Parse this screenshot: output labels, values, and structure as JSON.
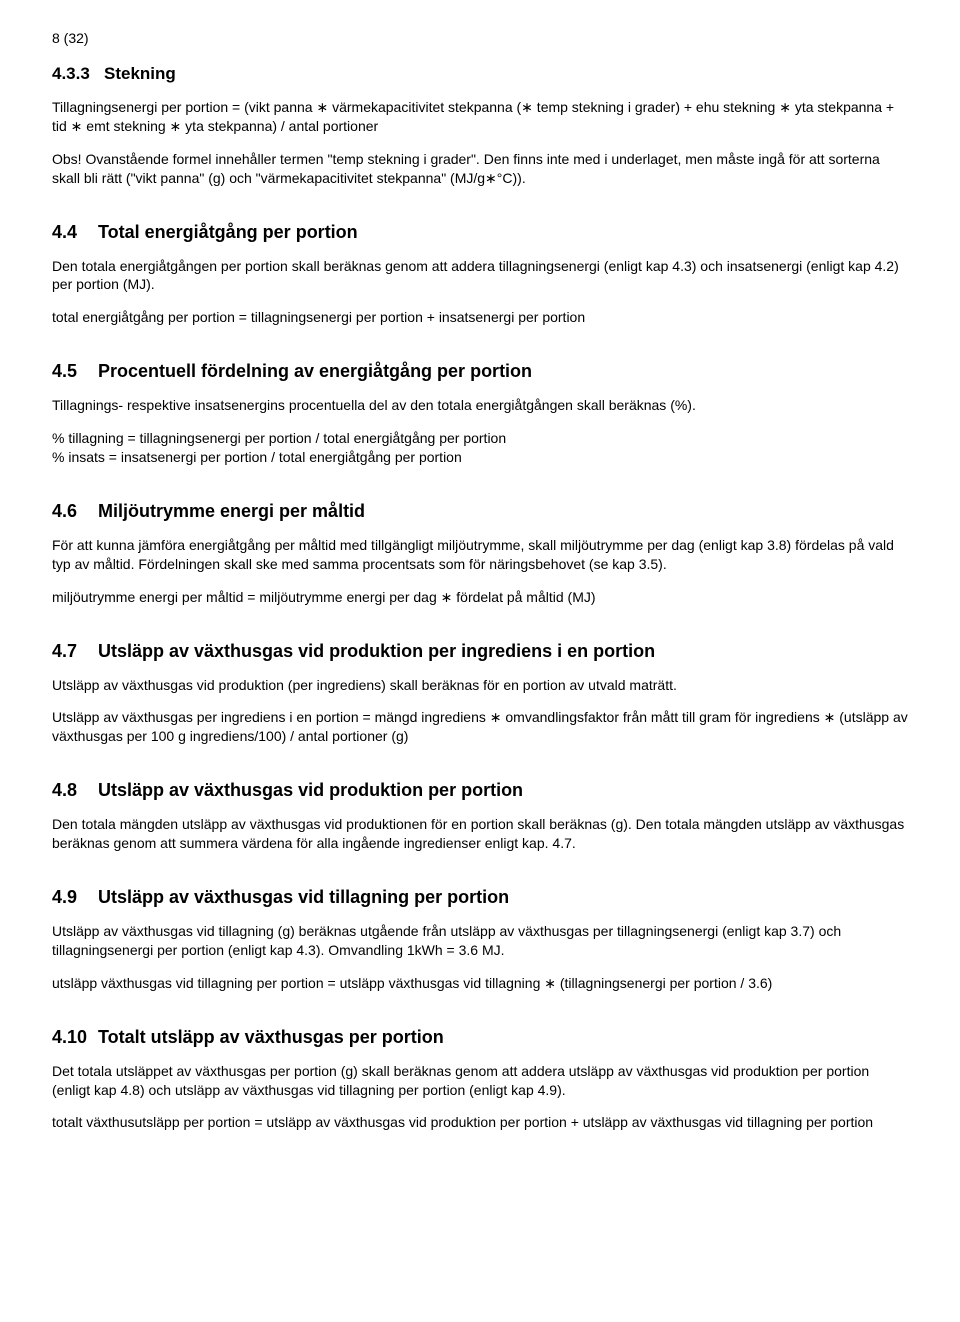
{
  "pageNumber": "8  (32)",
  "s433": {
    "num": "4.3.3",
    "title": "Stekning",
    "p1": "Tillagningsenergi per portion = (vikt panna ∗ värmekapacitivitet stekpanna (∗ temp stekning i grader) + ehu stekning ∗ yta stekpanna + tid ∗ emt stekning ∗ yta stekpanna) / antal portioner",
    "p2": "Obs! Ovanstående formel innehåller termen \"temp stekning i grader\". Den finns inte med i underlaget, men måste ingå för att sorterna skall bli rätt (\"vikt panna\" (g) och \"värmekapacitivitet stekpanna\" (MJ/g∗°C))."
  },
  "s44": {
    "num": "4.4",
    "title": "Total energiåtgång per portion",
    "p1": "Den totala energiåtgången per portion skall beräknas genom att addera tillagningsenergi (enligt kap 4.3) och insatsenergi (enligt kap 4.2) per portion (MJ).",
    "p2": "total energiåtgång per portion = tillagningsenergi per portion + insatsenergi per portion"
  },
  "s45": {
    "num": "4.5",
    "title": "Procentuell fördelning av energiåtgång per portion",
    "p1": "Tillagnings- respektive insatsenergins procentuella del av den totala energiåtgången skall beräknas (%).",
    "p2": "% tillagning =  tillagningsenergi per portion / total energiåtgång per portion\n% insats = insatsenergi per portion / total energiåtgång per portion"
  },
  "s46": {
    "num": "4.6",
    "title": "Miljöutrymme energi per måltid",
    "p1": "För att kunna jämföra energiåtgång per måltid med tillgängligt miljöutrymme, skall miljöutrymme per dag (enligt kap 3.8) fördelas på vald typ av måltid. Fördelningen skall ske med samma procentsats som för näringsbehovet (se kap 3.5).",
    "p2": "miljöutrymme energi per måltid = miljöutrymme energi per dag ∗ fördelat på måltid  (MJ)"
  },
  "s47": {
    "num": "4.7",
    "title": "Utsläpp av växthusgas vid produktion per ingrediens i en portion",
    "p1": "Utsläpp av växthusgas vid produktion (per ingrediens) skall beräknas för en portion av utvald maträtt.",
    "p2": "Utsläpp av växthusgas per ingrediens i en portion = mängd ingrediens ∗ omvandlingsfaktor från mått till gram för ingrediens ∗ (utsläpp av växthusgas per 100 g ingrediens/100) / antal portioner     (g)"
  },
  "s48": {
    "num": "4.8",
    "title": "Utsläpp av växthusgas vid produktion per portion",
    "p1": "Den totala mängden utsläpp av växthusgas vid produktionen för en portion skall beräknas (g). Den totala mängden utsläpp av växthusgas beräknas genom att summera värdena för alla ingående ingredienser enligt kap. 4.7."
  },
  "s49": {
    "num": "4.9",
    "title": "Utsläpp av växthusgas vid tillagning per portion",
    "p1": "Utsläpp av växthusgas vid tillagning (g) beräknas utgående från utsläpp av växthusgas per tillagningsenergi (enligt kap 3.7) och tillagningsenergi per portion (enligt kap 4.3). Omvandling 1kWh = 3.6 MJ.",
    "p2": "utsläpp växthusgas vid tillagning per portion  = utsläpp växthusgas vid tillagning ∗ (tillagningsenergi per portion / 3.6)"
  },
  "s410": {
    "num": "4.10",
    "title": "Totalt utsläpp av växthusgas per portion",
    "p1": "Det totala utsläppet av växthusgas per portion (g) skall beräknas genom att addera utsläpp av växthusgas vid produktion per portion (enligt kap 4.8) och utsläpp av växthusgas vid tillagning per portion (enligt kap 4.9).",
    "p2": "totalt växthusutsläpp per portion = utsläpp av växthusgas vid produktion per portion + utsläpp av växthusgas vid tillagning per portion"
  }
}
